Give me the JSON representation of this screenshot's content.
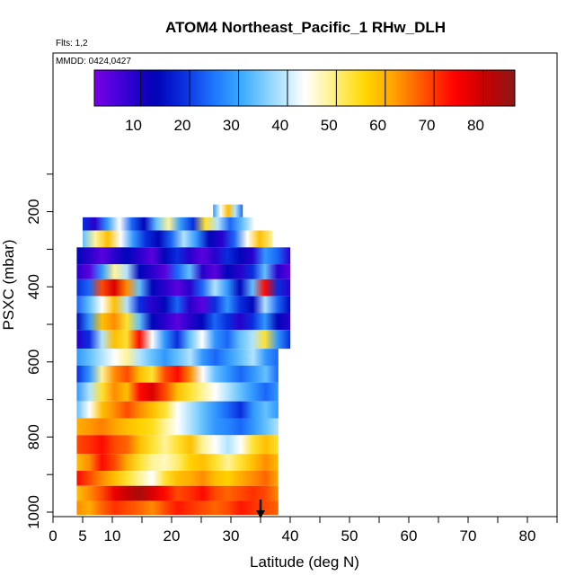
{
  "chart_data": {
    "type": "heatmap",
    "title": "ATOM4 Northeast_Pacific_1 RHw_DLH",
    "flights_note": "Flts: 1,2",
    "dates_note": "MMDD: 0424,0427",
    "xlabel": "Latitude (deg N)",
    "ylabel": "PSXC (mbar)",
    "xlim": [
      0,
      85
    ],
    "ylim": [
      1010,
      0
    ],
    "x_ticks": [
      0,
      5,
      10,
      20,
      30,
      40,
      50,
      60,
      70,
      80
    ],
    "y_ticks": [
      200,
      400,
      600,
      800,
      1000
    ],
    "colorbar": {
      "range": [
        2,
        88
      ],
      "ticks": [
        10,
        20,
        30,
        40,
        50,
        60,
        70,
        80
      ],
      "colors": [
        "#7a00e6",
        "#3a00d6",
        "#0000b4",
        "#0a30e0",
        "#1e78ff",
        "#40b0ff",
        "#9fdcff",
        "#ffffff",
        "#fff080",
        "#ffd800",
        "#ffa000",
        "#ff5000",
        "#ff0000",
        "#c80000",
        "#8c1818"
      ]
    },
    "legend_position": "top",
    "marker_latitude": 35,
    "rows": [
      {
        "p": 200,
        "lat": [
          27,
          32
        ],
        "rh": [
          30,
          45,
          60,
          40,
          25
        ]
      },
      {
        "p": 230,
        "lat": [
          5,
          34
        ],
        "rh": [
          20,
          10,
          30,
          45,
          25,
          15,
          35,
          50,
          30,
          20,
          55,
          40,
          25,
          35,
          45
        ]
      },
      {
        "p": 270,
        "lat": [
          5,
          37
        ],
        "rh": [
          35,
          50,
          60,
          45,
          30,
          20,
          15,
          25,
          40,
          30,
          15,
          10,
          25,
          45,
          60,
          50
        ]
      },
      {
        "p": 320,
        "lat": [
          4,
          40
        ],
        "rh": [
          15,
          10,
          5,
          10,
          15,
          10,
          5,
          15,
          20,
          10,
          5,
          10,
          20,
          15,
          10,
          30,
          25,
          10
        ]
      },
      {
        "p": 360,
        "lat": [
          4,
          40
        ],
        "rh": [
          10,
          5,
          30,
          50,
          40,
          15,
          10,
          5,
          25,
          35,
          10,
          5,
          15,
          10,
          20,
          35,
          10,
          5
        ]
      },
      {
        "p": 400,
        "lat": [
          4,
          40
        ],
        "rh": [
          20,
          25,
          70,
          80,
          65,
          35,
          15,
          10,
          5,
          10,
          25,
          40,
          30,
          15,
          35,
          75,
          20,
          10
        ]
      },
      {
        "p": 450,
        "lat": [
          4,
          40
        ],
        "rh": [
          25,
          35,
          45,
          60,
          40,
          20,
          10,
          15,
          25,
          10,
          5,
          20,
          30,
          20,
          15,
          40,
          25,
          15
        ]
      },
      {
        "p": 490,
        "lat": [
          4,
          40
        ],
        "rh": [
          15,
          30,
          60,
          65,
          55,
          35,
          15,
          10,
          5,
          10,
          15,
          25,
          20,
          10,
          20,
          30,
          15,
          10
        ]
      },
      {
        "p": 540,
        "lat": [
          4,
          40
        ],
        "rh": [
          10,
          20,
          40,
          60,
          55,
          75,
          45,
          30,
          20,
          35,
          45,
          30,
          25,
          35,
          40,
          55,
          30,
          20
        ]
      },
      {
        "p": 590,
        "lat": [
          4,
          38
        ],
        "rh": [
          30,
          35,
          40,
          45,
          50,
          40,
          35,
          30,
          35,
          40,
          30,
          25,
          30,
          35,
          40,
          30,
          25
        ]
      },
      {
        "p": 630,
        "lat": [
          4,
          38
        ],
        "rh": [
          20,
          30,
          50,
          65,
          70,
          60,
          55,
          70,
          75,
          65,
          45,
          35,
          30,
          25,
          30,
          35,
          25
        ]
      },
      {
        "p": 680,
        "lat": [
          4,
          38
        ],
        "rh": [
          30,
          40,
          55,
          65,
          60,
          75,
          80,
          70,
          60,
          55,
          50,
          45,
          40,
          35,
          30,
          25,
          30
        ]
      },
      {
        "p": 730,
        "lat": [
          4,
          38
        ],
        "rh": [
          35,
          45,
          60,
          65,
          70,
          65,
          60,
          55,
          45,
          40,
          35,
          30,
          25,
          20,
          30,
          35,
          30
        ]
      },
      {
        "p": 770,
        "lat": [
          4,
          38
        ],
        "rh": [
          62,
          64,
          66,
          63,
          60,
          58,
          56,
          50,
          45,
          40,
          35,
          30,
          28,
          25,
          30,
          35,
          40
        ]
      },
      {
        "p": 820,
        "lat": [
          4,
          38
        ],
        "rh": [
          70,
          72,
          75,
          70,
          68,
          60,
          55,
          50,
          55,
          60,
          50,
          45,
          40,
          45,
          55,
          60,
          55
        ]
      },
      {
        "p": 870,
        "lat": [
          4,
          38
        ],
        "rh": [
          60,
          65,
          75,
          70,
          62,
          55,
          50,
          48,
          52,
          58,
          60,
          55,
          50,
          55,
          60,
          65,
          60
        ]
      },
      {
        "p": 910,
        "lat": [
          4,
          38
        ],
        "rh": [
          75,
          70,
          65,
          60,
          55,
          50,
          45,
          55,
          60,
          62,
          65,
          60,
          58,
          62,
          65,
          68,
          62
        ]
      },
      {
        "p": 950,
        "lat": [
          4,
          38
        ],
        "rh": [
          60,
          65,
          70,
          78,
          82,
          85,
          80,
          75,
          70,
          72,
          75,
          70,
          68,
          70,
          72,
          70,
          65
        ]
      },
      {
        "p": 990,
        "lat": [
          4,
          38
        ],
        "rh": [
          65,
          62,
          68,
          72,
          70,
          68,
          65,
          70,
          74,
          72,
          70,
          68,
          70,
          74,
          72,
          70,
          68
        ]
      }
    ]
  }
}
